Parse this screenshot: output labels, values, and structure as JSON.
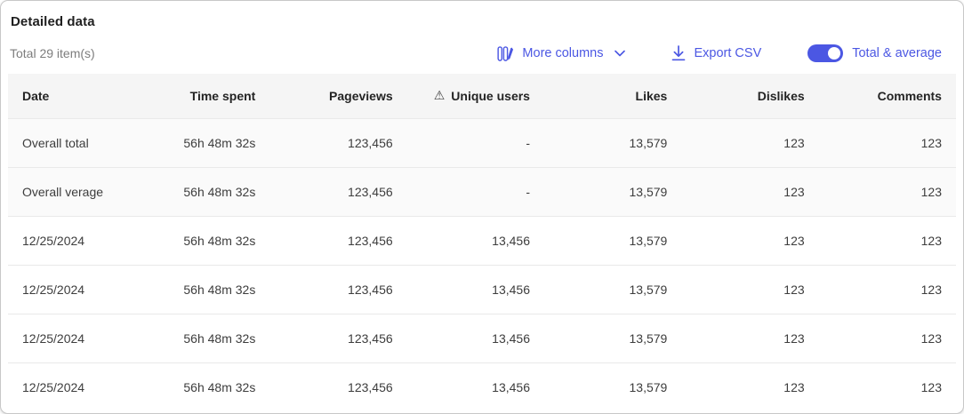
{
  "accent": "#4b57e3",
  "header": {
    "title": "Detailed data",
    "subtitle": "Total 29 item(s)",
    "actions": {
      "more_columns_label": "More columns",
      "export_csv_label": "Export CSV",
      "toggle_label": "Total & average",
      "toggle_on": true
    }
  },
  "table": {
    "columns": [
      {
        "label": "Date",
        "align": "left",
        "warning": false
      },
      {
        "label": "Time spent",
        "align": "right",
        "warning": false
      },
      {
        "label": "Pageviews",
        "align": "right",
        "warning": false
      },
      {
        "label": "Unique users",
        "align": "right",
        "warning": true
      },
      {
        "label": "Likes",
        "align": "right",
        "warning": false
      },
      {
        "label": "Dislikes",
        "align": "right",
        "warning": false
      },
      {
        "label": "Comments",
        "align": "right",
        "warning": false
      }
    ],
    "warning_icon": "⚠",
    "rows": [
      {
        "summary": true,
        "cells": [
          "Overall total",
          "56h 48m 32s",
          "123,456",
          "-",
          "13,579",
          "123",
          "123"
        ]
      },
      {
        "summary": true,
        "cells": [
          "Overall verage",
          "56h 48m 32s",
          "123,456",
          "-",
          "13,579",
          "123",
          "123"
        ]
      },
      {
        "summary": false,
        "cells": [
          "12/25/2024",
          "56h 48m 32s",
          "123,456",
          "13,456",
          "13,579",
          "123",
          "123"
        ]
      },
      {
        "summary": false,
        "cells": [
          "12/25/2024",
          "56h 48m 32s",
          "123,456",
          "13,456",
          "13,579",
          "123",
          "123"
        ]
      },
      {
        "summary": false,
        "cells": [
          "12/25/2024",
          "56h 48m 32s",
          "123,456",
          "13,456",
          "13,579",
          "123",
          "123"
        ]
      },
      {
        "summary": false,
        "cells": [
          "12/25/2024",
          "56h 48m 32s",
          "123,456",
          "13,456",
          "13,579",
          "123",
          "123"
        ]
      }
    ]
  }
}
